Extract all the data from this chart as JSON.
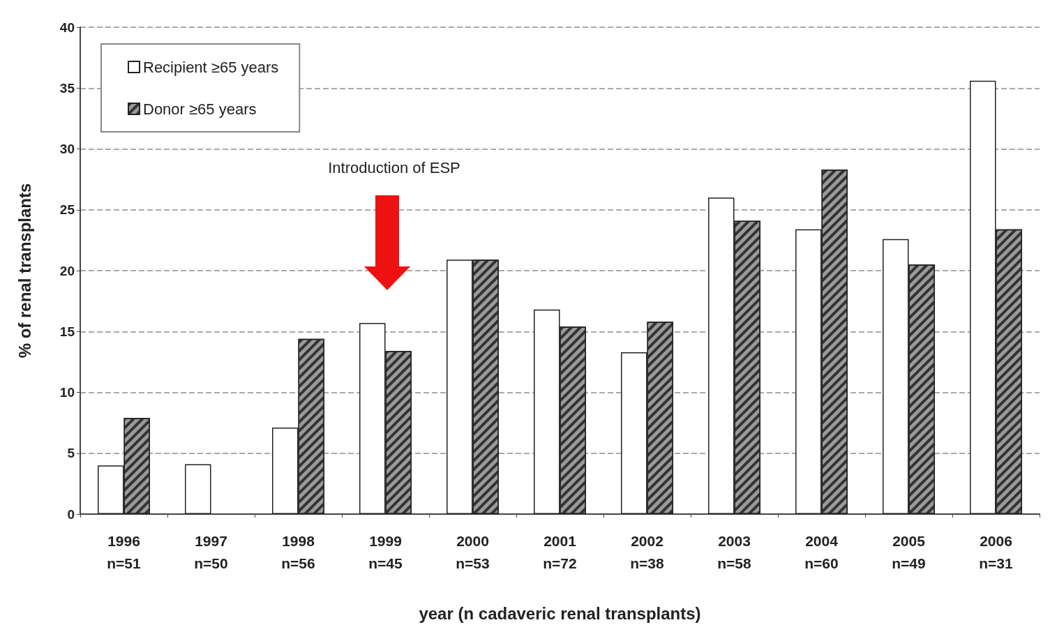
{
  "chart_data": {
    "type": "bar",
    "xlabel": "year (n cadaveric renal transplants)",
    "ylabel": "% of renal transplants",
    "categories": [
      "1996\nn=51",
      "1997\nn=50",
      "1998\nn=56",
      "1999\nn=45",
      "2000\nn=53",
      "2001\nn=72",
      "2002\nn=38",
      "2003\nn=58",
      "2004\nn=60",
      "2005\nn=49",
      "2006\nn=31"
    ],
    "series": [
      {
        "name": "Recipient ≥65 years",
        "color": "#ffffff",
        "values": [
          4.0,
          4.1,
          7.1,
          15.7,
          20.9,
          16.8,
          13.3,
          26.0,
          23.4,
          22.6,
          35.6
        ]
      },
      {
        "name": "Donor ≥65 years",
        "color": "#9a9a9a",
        "values": [
          7.9,
          null,
          14.4,
          13.4,
          20.9,
          15.4,
          15.8,
          24.1,
          28.3,
          20.5,
          23.4
        ]
      }
    ],
    "ylim": [
      0,
      40
    ],
    "yticks": [
      0,
      5,
      10,
      15,
      20,
      25,
      30,
      35,
      40
    ],
    "grid": "y",
    "legend": "top left",
    "annotations": [
      "Introduction of ESP"
    ]
  }
}
